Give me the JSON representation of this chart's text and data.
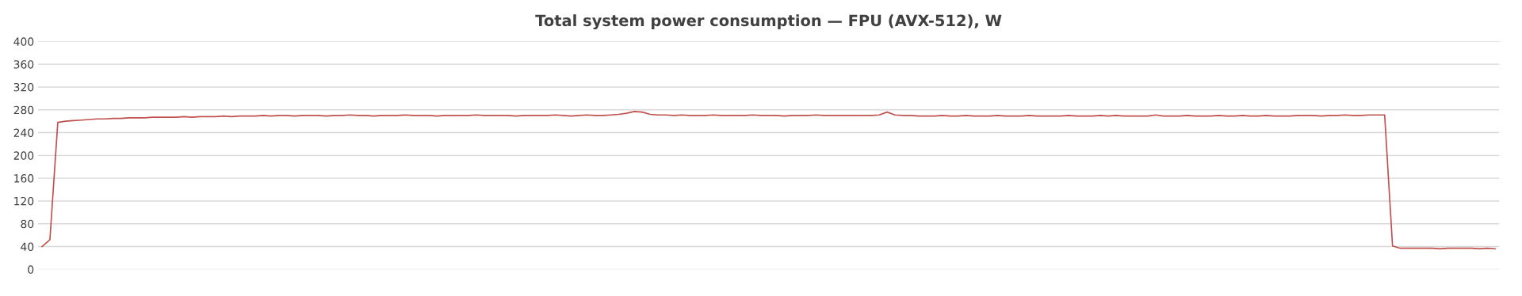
{
  "chart_data": {
    "type": "line",
    "title": "Total system power consumption — FPU (AVX-512), W",
    "categories": [
      null,
      null,
      null,
      null,
      null,
      null,
      null,
      null,
      null,
      null,
      null,
      null,
      null,
      null,
      null,
      null,
      null,
      null,
      null,
      null,
      null,
      null,
      null,
      null,
      null,
      null,
      null,
      null,
      null,
      null,
      null,
      null,
      null,
      null,
      null,
      null,
      null,
      null,
      null,
      null,
      null,
      null,
      null,
      null,
      null,
      null,
      null,
      null,
      null,
      null,
      null,
      null,
      null,
      null,
      null,
      null,
      null,
      null,
      null,
      null,
      null,
      null,
      null,
      null,
      null,
      null,
      null,
      null,
      null,
      null,
      null,
      null,
      null,
      null,
      null,
      null,
      null,
      null,
      null,
      null,
      null,
      null,
      null,
      null,
      null,
      null,
      null,
      null,
      null,
      null,
      null,
      null,
      null,
      null,
      null,
      null,
      null,
      null,
      null,
      null,
      null,
      null,
      null,
      null,
      null,
      null,
      null,
      null,
      null,
      null,
      null,
      null,
      null,
      null,
      null,
      null,
      null,
      null,
      null,
      null,
      null,
      null,
      null,
      null,
      null,
      null,
      null,
      null,
      null,
      null,
      null,
      null,
      null,
      null,
      null,
      null,
      null,
      null,
      null,
      null,
      null,
      null,
      null,
      null,
      null,
      null,
      null,
      null,
      null,
      null,
      null,
      null,
      null,
      null,
      null,
      null,
      null,
      null,
      null,
      null,
      null,
      null,
      null,
      null,
      null,
      null,
      null,
      null,
      null,
      null,
      null,
      null,
      null,
      null,
      null,
      null,
      null,
      null,
      null,
      null,
      null,
      null,
      null,
      null,
      null
    ],
    "series": [
      {
        "color": "#c0504d",
        "values": [
          40,
          52,
          258,
          260,
          261,
          262,
          263,
          264,
          264,
          265,
          265,
          266,
          266,
          266,
          267,
          267,
          267,
          267,
          268,
          267,
          268,
          268,
          268,
          269,
          268,
          269,
          269,
          269,
          270,
          269,
          270,
          270,
          269,
          270,
          270,
          270,
          269,
          270,
          270,
          271,
          270,
          270,
          269,
          270,
          270,
          270,
          271,
          270,
          270,
          270,
          269,
          270,
          270,
          270,
          270,
          271,
          270,
          270,
          270,
          270,
          269,
          270,
          270,
          270,
          270,
          271,
          270,
          269,
          270,
          271,
          270,
          270,
          271,
          272,
          274,
          277,
          276,
          272,
          271,
          271,
          270,
          271,
          270,
          270,
          270,
          271,
          270,
          270,
          270,
          270,
          271,
          270,
          270,
          270,
          269,
          270,
          270,
          270,
          271,
          270,
          270,
          270,
          270,
          270,
          270,
          270,
          271,
          276,
          271,
          270,
          270,
          269,
          269,
          269,
          270,
          269,
          269,
          270,
          269,
          269,
          269,
          270,
          269,
          269,
          269,
          270,
          269,
          269,
          269,
          269,
          270,
          269,
          269,
          269,
          270,
          269,
          270,
          269,
          269,
          269,
          269,
          271,
          269,
          269,
          269,
          270,
          269,
          269,
          269,
          270,
          269,
          269,
          270,
          269,
          269,
          270,
          269,
          269,
          269,
          270,
          270,
          270,
          269,
          270,
          270,
          271,
          270,
          270,
          271,
          271,
          271,
          41,
          37,
          37,
          37,
          37,
          37,
          36,
          37,
          37,
          37,
          37,
          36,
          37,
          36
        ]
      }
    ],
    "ylim": [
      0,
      400
    ],
    "yticks": [
      0,
      40,
      80,
      120,
      160,
      200,
      240,
      280,
      320,
      360,
      400
    ],
    "grid": "y",
    "legend": false,
    "marker": "none",
    "line_style": "solid"
  }
}
